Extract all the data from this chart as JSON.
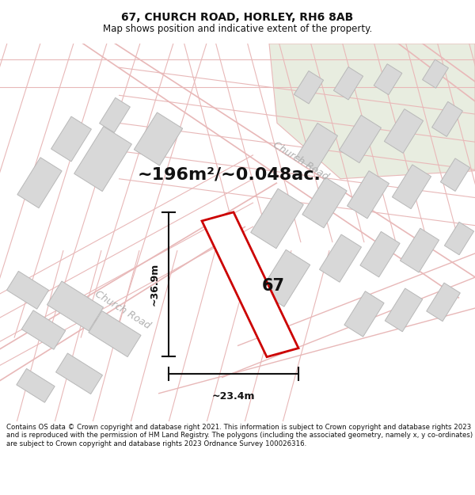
{
  "title": "67, CHURCH ROAD, HORLEY, RH6 8AB",
  "subtitle": "Map shows position and indicative extent of the property.",
  "area_text": "~196m²/~0.048ac.",
  "footer": "Contains OS data © Crown copyright and database right 2021. This information is subject to Crown copyright and database rights 2023 and is reproduced with the permission of HM Land Registry. The polygons (including the associated geometry, namely x, y co-ordinates) are subject to Crown copyright and database rights 2023 Ordnance Survey 100026316.",
  "width_label": "~23.4m",
  "height_label": "~36.9m",
  "property_number": "67",
  "bg_color": "#ffffff",
  "map_bg": "#f8f8f5",
  "road_line_color": "#e8b8b8",
  "building_fill": "#d8d8d8",
  "building_edge": "#b8b8b8",
  "green_fill": "#e8ede0",
  "property_outline_color": "#cc0000",
  "dim_line_color": "#111111",
  "road_label_color": "#b0b0b0",
  "title_color": "#111111",
  "footer_color": "#111111",
  "title_fontsize": 10,
  "subtitle_fontsize": 8.5,
  "area_fontsize": 16,
  "footer_fontsize": 6.2,
  "dim_fontsize": 9,
  "prop_num_fontsize": 15,
  "road_label_fontsize": 9
}
